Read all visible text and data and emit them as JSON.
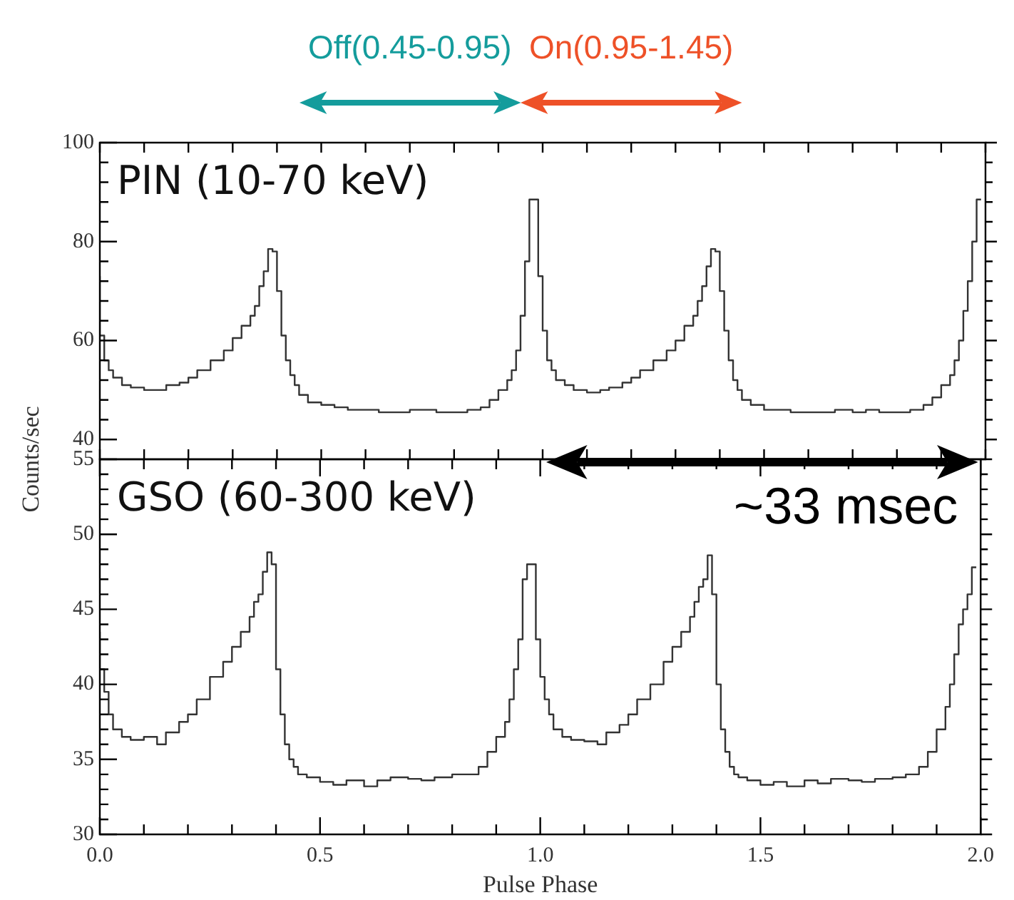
{
  "chart_data": [
    {
      "type": "step",
      "ylabel": "Counts/sec",
      "annotations": [
        "PIN (10-70 keV)",
        "Off(0.45-0.95)",
        "On(0.95-1.45)"
      ],
      "tick_labels": "y",
      "xlim": [
        0,
        2
      ],
      "xticks": [
        {
          "value": 0,
          "label": null
        },
        {
          "value": 0.1,
          "label": null
        },
        {
          "value": 0.2,
          "label": null
        },
        {
          "value": 0.3,
          "label": null
        },
        {
          "value": 0.4,
          "label": null
        },
        {
          "value": 0.5,
          "label": null
        },
        {
          "value": 0.6,
          "label": null
        },
        {
          "value": 0.7,
          "label": null
        },
        {
          "value": 0.8,
          "label": null
        },
        {
          "value": 0.9,
          "label": null
        },
        {
          "value": 1,
          "label": null
        },
        {
          "value": 1.1,
          "label": null
        },
        {
          "value": 1.2,
          "label": null
        },
        {
          "value": 1.3,
          "label": null
        },
        {
          "value": 1.4,
          "label": null
        },
        {
          "value": 1.5,
          "label": null
        },
        {
          "value": 1.6,
          "label": null
        },
        {
          "value": 1.7,
          "label": null
        },
        {
          "value": 1.8,
          "label": null
        },
        {
          "value": 1.9,
          "label": null
        },
        {
          "value": 2,
          "label": null
        }
      ],
      "ylim": [
        36,
        100
      ],
      "yticks": [
        40,
        {
          "value": 44,
          "label": null
        },
        {
          "value": 48,
          "label": null
        },
        {
          "value": 52,
          "label": null
        },
        {
          "value": 56,
          "label": null
        },
        60,
        {
          "value": 64,
          "label": null
        },
        {
          "value": 68,
          "label": null
        },
        {
          "value": 72,
          "label": null
        },
        {
          "value": 76,
          "label": null
        },
        80,
        {
          "value": 84,
          "label": null
        },
        {
          "value": 88,
          "label": null
        },
        {
          "value": 92,
          "label": null
        },
        {
          "value": 96,
          "label": null
        },
        100
      ],
      "series": [
        {
          "color": "#333333",
          "x": [
            0,
            0.01,
            0.02,
            0.03,
            0.05,
            0.07,
            0.1,
            0.13,
            0.15,
            0.18,
            0.2,
            0.22,
            0.25,
            0.28,
            0.3,
            0.32,
            0.34,
            0.35,
            0.36,
            0.37,
            0.38,
            0.39,
            0.4,
            0.41,
            0.42,
            0.43,
            0.44,
            0.45,
            0.47,
            0.5,
            0.53,
            0.56,
            0.6,
            0.63,
            0.66,
            0.7,
            0.73,
            0.76,
            0.8,
            0.83,
            0.86,
            0.88,
            0.9,
            0.92,
            0.93,
            0.94,
            0.95,
            0.96,
            0.97,
            0.98,
            0.99,
            1,
            1.01,
            1.02,
            1.03,
            1.05,
            1.07,
            1.1,
            1.13,
            1.15,
            1.18,
            1.2,
            1.22,
            1.25,
            1.28,
            1.3,
            1.32,
            1.34,
            1.35,
            1.36,
            1.37,
            1.38,
            1.39,
            1.4,
            1.41,
            1.42,
            1.43,
            1.44,
            1.45,
            1.47,
            1.5,
            1.53,
            1.56,
            1.6,
            1.63,
            1.66,
            1.7,
            1.73,
            1.76,
            1.8,
            1.83,
            1.86,
            1.88,
            1.9,
            1.92,
            1.93,
            1.94,
            1.95,
            1.96,
            1.97,
            1.98,
            1.99
          ],
          "values": [
            73,
            61,
            56,
            54,
            52.5,
            51,
            50.5,
            50,
            50,
            51,
            51.5,
            52.5,
            54,
            56,
            58,
            60.5,
            63,
            65,
            67,
            71,
            74,
            78.5,
            78,
            70,
            61,
            56,
            53,
            51,
            49,
            47.5,
            47,
            46.5,
            46,
            46,
            45.5,
            45.5,
            46,
            46,
            45.5,
            45.5,
            46,
            46.5,
            48,
            50,
            52,
            54,
            58,
            65,
            76,
            88.5,
            88.5,
            73,
            62,
            56,
            54,
            52,
            51,
            50,
            49.5,
            50,
            50.5,
            51.5,
            52.5,
            54,
            56,
            58,
            60,
            63,
            65,
            68,
            71,
            75,
            78.5,
            78,
            70,
            62,
            56,
            52,
            50,
            48,
            47,
            46,
            46,
            45.5,
            45.5,
            45.5,
            46,
            45.5,
            46,
            45.5,
            45.5,
            46,
            47,
            48.5,
            51,
            53,
            56,
            60,
            66,
            72,
            80,
            88.5
          ]
        }
      ]
    },
    {
      "type": "step",
      "xlabel": "Pulse Phase",
      "annotations": [
        "GSO (60-300 keV)",
        "~33 msec"
      ],
      "xlim": [
        0,
        2
      ],
      "xticks": [
        {
          "value": 0,
          "label": "0.0"
        },
        {
          "value": 0.1,
          "label": null
        },
        {
          "value": 0.2,
          "label": null
        },
        {
          "value": 0.3,
          "label": null
        },
        {
          "value": 0.4,
          "label": null
        },
        {
          "value": 0.5,
          "label": "0.5"
        },
        {
          "value": 0.6,
          "label": null
        },
        {
          "value": 0.7,
          "label": null
        },
        {
          "value": 0.8,
          "label": null
        },
        {
          "value": 0.9,
          "label": null
        },
        {
          "value": 1,
          "label": "1.0"
        },
        {
          "value": 1.1,
          "label": null
        },
        {
          "value": 1.2,
          "label": null
        },
        {
          "value": 1.3,
          "label": null
        },
        {
          "value": 1.4,
          "label": null
        },
        {
          "value": 1.5,
          "label": "1.5"
        },
        {
          "value": 1.6,
          "label": null
        },
        {
          "value": 1.7,
          "label": null
        },
        {
          "value": 1.8,
          "label": null
        },
        {
          "value": 1.9,
          "label": null
        },
        {
          "value": 2,
          "label": "2.0"
        }
      ],
      "ylim": [
        30,
        55
      ],
      "yticks": [
        30,
        {
          "value": 31,
          "label": null
        },
        {
          "value": 32,
          "label": null
        },
        {
          "value": 33,
          "label": null
        },
        {
          "value": 34,
          "label": null
        },
        35,
        {
          "value": 36,
          "label": null
        },
        {
          "value": 37,
          "label": null
        },
        {
          "value": 38,
          "label": null
        },
        {
          "value": 39,
          "label": null
        },
        40,
        {
          "value": 41,
          "label": null
        },
        {
          "value": 42,
          "label": null
        },
        {
          "value": 43,
          "label": null
        },
        {
          "value": 44,
          "label": null
        },
        45,
        {
          "value": 46,
          "label": null
        },
        {
          "value": 47,
          "label": null
        },
        {
          "value": 48,
          "label": null
        },
        {
          "value": 49,
          "label": null
        },
        50,
        {
          "value": 51,
          "label": null
        },
        {
          "value": 52,
          "label": null
        },
        {
          "value": 53,
          "label": null
        },
        {
          "value": 54,
          "label": null
        },
        55
      ],
      "series": [
        {
          "color": "#333333",
          "x": [
            0,
            0.01,
            0.02,
            0.03,
            0.05,
            0.07,
            0.1,
            0.13,
            0.15,
            0.18,
            0.2,
            0.22,
            0.25,
            0.28,
            0.3,
            0.32,
            0.34,
            0.35,
            0.36,
            0.37,
            0.38,
            0.39,
            0.4,
            0.41,
            0.42,
            0.43,
            0.44,
            0.45,
            0.47,
            0.5,
            0.53,
            0.56,
            0.6,
            0.63,
            0.66,
            0.7,
            0.73,
            0.76,
            0.8,
            0.83,
            0.86,
            0.88,
            0.9,
            0.92,
            0.93,
            0.94,
            0.95,
            0.96,
            0.97,
            0.98,
            0.99,
            1,
            1.01,
            1.02,
            1.03,
            1.05,
            1.07,
            1.1,
            1.13,
            1.15,
            1.18,
            1.2,
            1.22,
            1.25,
            1.28,
            1.3,
            1.32,
            1.34,
            1.35,
            1.36,
            1.37,
            1.38,
            1.39,
            1.4,
            1.41,
            1.42,
            1.43,
            1.44,
            1.45,
            1.47,
            1.5,
            1.53,
            1.56,
            1.6,
            1.63,
            1.66,
            1.7,
            1.73,
            1.76,
            1.8,
            1.83,
            1.86,
            1.88,
            1.9,
            1.92,
            1.93,
            1.94,
            1.95,
            1.96,
            1.97,
            1.98,
            1.99
          ],
          "values": [
            43.5,
            41,
            39.5,
            38,
            37,
            36.5,
            36.3,
            36.5,
            36,
            36.8,
            37.5,
            38,
            39,
            40.5,
            41.5,
            42.5,
            43.5,
            44.5,
            45.5,
            46,
            47.5,
            48.8,
            48,
            41,
            38,
            36,
            35,
            34.5,
            34,
            33.8,
            33.5,
            33.3,
            33.6,
            33.2,
            33.6,
            33.8,
            33.7,
            33.6,
            33.8,
            34,
            34,
            34.5,
            35.5,
            36.5,
            37.5,
            39,
            41,
            43,
            47,
            48,
            48,
            43,
            40.5,
            39,
            38,
            37,
            36.5,
            36.3,
            36.2,
            36,
            36.8,
            37.3,
            38,
            39,
            40,
            41.5,
            42.5,
            43.5,
            44.5,
            45.5,
            46.5,
            47,
            48.6,
            46,
            40,
            37,
            35.5,
            34.5,
            34,
            33.8,
            33.6,
            33.3,
            33.5,
            33.2,
            33.6,
            33.4,
            33.7,
            33.6,
            33.5,
            33.7,
            33.8,
            34,
            34.5,
            35.5,
            37,
            38.5,
            40,
            42,
            44,
            45,
            46,
            47.8
          ]
        }
      ]
    }
  ]
}
